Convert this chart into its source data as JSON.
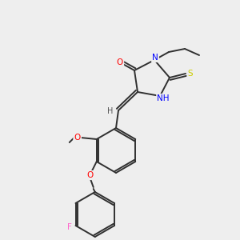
{
  "background_color": "#eeeeee",
  "figsize": [
    3.0,
    3.0
  ],
  "dpi": 100,
  "bond_color": "#303030",
  "bond_lw": 1.4,
  "atom_colors": {
    "O": "#ff0000",
    "N": "#0000ff",
    "S": "#cccc00",
    "F": "#ff66cc",
    "H": "#555555",
    "C": "#303030"
  }
}
